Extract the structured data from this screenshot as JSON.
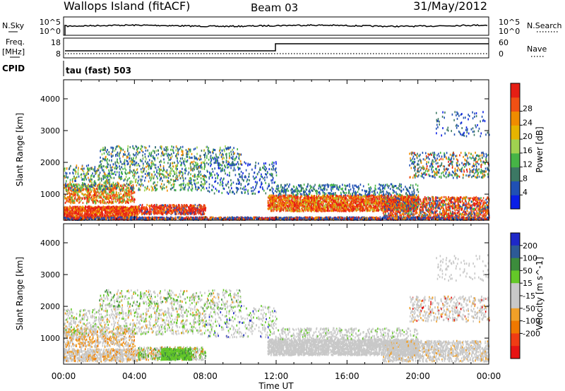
{
  "header": {
    "station": "Wallops Island (fitACF)",
    "beam": "Beam 03",
    "date": "31/May/2012"
  },
  "nsky_panel": {
    "left_label": "N.Sky",
    "right_label": "N.Search",
    "ytick_top": "10^5",
    "ytick_bottom": "10^0"
  },
  "freq_panel": {
    "left_label_1": "Freq.",
    "left_label_2": "[MHz]",
    "right_label": "Nave",
    "left_ticks": [
      "18",
      "8"
    ],
    "right_ticks": [
      "60",
      "0"
    ]
  },
  "cpid": {
    "label": "CPID",
    "value": "tau (fast) 503"
  },
  "chart_data": [
    {
      "type": "heatmap",
      "name": "power",
      "ylabel": "Slant Range [km]",
      "xlabel": "",
      "yticks": [
        "1000",
        "2000",
        "3000",
        "4000"
      ],
      "ylim": [
        180,
        4600
      ],
      "colorbar": {
        "label": "Power [dB]",
        "ticks": [
          "4",
          "8",
          "12",
          "16",
          "20",
          "24",
          "28"
        ],
        "colors": [
          "#0a1ee6",
          "#2050b4",
          "#3c7864",
          "#46b446",
          "#a0d250",
          "#e6b400",
          "#f08c00",
          "#f05014",
          "#e61e14"
        ]
      }
    },
    {
      "type": "heatmap",
      "name": "velocity",
      "ylabel": "Slant Range [km]",
      "xlabel": "Time UT",
      "xticks": [
        "00:00",
        "04:00",
        "08:00",
        "12:00",
        "16:00",
        "20:00",
        "00:00"
      ],
      "yticks": [
        "1000",
        "2000",
        "3000",
        "4000"
      ],
      "ylim": [
        180,
        4600
      ],
      "colorbar": {
        "label": "Velocity [m s^-1]",
        "ticks": [
          "200",
          "100",
          "50",
          "15",
          "-15",
          "-50",
          "-100",
          "-200"
        ],
        "colors": [
          "#1e28c8",
          "#2d5a96",
          "#3c8c3c",
          "#64c828",
          "#c8c8c8",
          "#c8c8c8",
          "#f0a028",
          "#f07800",
          "#f03c14",
          "#e61414"
        ]
      }
    }
  ]
}
